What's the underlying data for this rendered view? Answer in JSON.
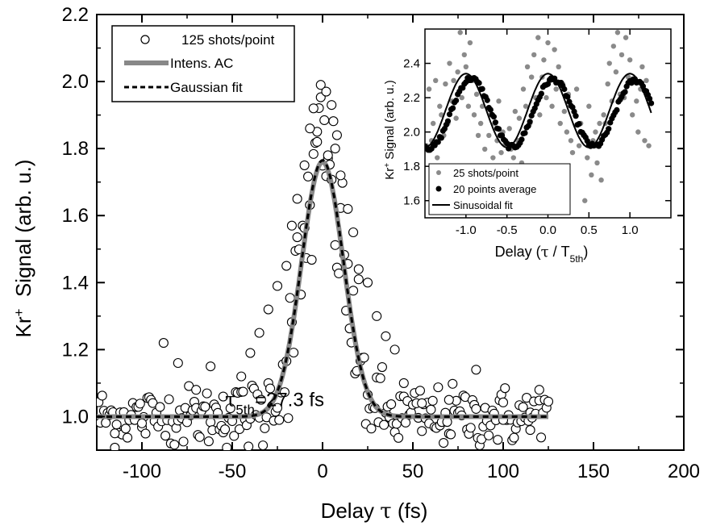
{
  "chart_data": [
    {
      "type": "scatter",
      "title": "",
      "xlabel": "Delay τ (fs)",
      "xlabel_parts": {
        "text": "Delay ",
        "sym": "τ",
        "unit": " (fs)"
      },
      "ylabel": "Kr+ Signal (arb. u.)",
      "ylabel_parts": {
        "base": "Kr",
        "sup": "+",
        "rest": "  Signal (arb. u.)"
      },
      "xlim": [
        -125,
        200
      ],
      "ylim": [
        0.9,
        2.2
      ],
      "xticks": [
        -100,
        -50,
        0,
        50,
        100,
        150,
        200
      ],
      "yticks": [
        1.0,
        1.2,
        1.4,
        1.6,
        1.8,
        2.0,
        2.2
      ],
      "ytick_labels": [
        "1.0",
        "1.2",
        "1.4",
        "1.6",
        "1.8",
        "2.0",
        "2.2"
      ],
      "grid": false,
      "legend_placement": "top-left",
      "legend": [
        "125 shots/point",
        "Intens. AC",
        "Gaussian fit"
      ],
      "annotation": {
        "sym": "τ",
        "sub": "5th",
        "text": "=27.3 fs"
      },
      "series": [
        {
          "name": "125 shots/point",
          "style": "open-circle",
          "color": "#000000",
          "model": "gaussian-with-noise",
          "x_range": [
            -125,
            125
          ],
          "x_step": 1,
          "note_points": [
            [
              -1,
              1.99
            ],
            [
              2,
              1.97
            ],
            [
              5,
              1.93
            ],
            [
              -5,
              1.92
            ],
            [
              8,
              1.84
            ],
            [
              -10,
              1.75
            ],
            [
              10,
              1.72
            ],
            [
              -88,
              1.22
            ],
            [
              -80,
              1.16
            ],
            [
              -62,
              1.15
            ],
            [
              85,
              1.14
            ],
            [
              -3,
              1.82
            ],
            [
              3,
              1.78
            ],
            [
              -14,
              1.65
            ],
            [
              14,
              1.62
            ],
            [
              -20,
              1.45
            ],
            [
              20,
              1.44
            ],
            [
              -30,
              1.32
            ],
            [
              30,
              1.3
            ],
            [
              -40,
              1.19
            ],
            [
              40,
              1.2
            ],
            [
              -25,
              1.39
            ],
            [
              25,
              1.4
            ],
            [
              -17,
              1.57
            ],
            [
              17,
              1.55
            ],
            [
              -7,
              1.86
            ],
            [
              7,
              1.8
            ],
            [
              -35,
              1.25
            ],
            [
              35,
              1.24
            ],
            [
              -45,
              1.12
            ],
            [
              45,
              1.1
            ],
            [
              -55,
              1.06
            ],
            [
              55,
              1.04
            ],
            [
              -70,
              1.08
            ],
            [
              70,
              1.05
            ],
            [
              -100,
              0.98
            ],
            [
              100,
              0.99
            ],
            [
              -115,
              0.95
            ],
            [
              115,
              0.96
            ],
            [
              120,
              1.08
            ]
          ]
        },
        {
          "name": "Intens. AC",
          "style": "thick-line",
          "color": "#888888",
          "model": "gaussian",
          "baseline": 1.0,
          "amplitude": 0.76,
          "center": 0,
          "fwhm": 27.3,
          "x_range": [
            -125,
            125
          ]
        },
        {
          "name": "Gaussian fit",
          "style": "dashed-line",
          "color": "#000000",
          "model": "gaussian",
          "baseline": 1.0,
          "amplitude": 0.765,
          "center": 0,
          "fwhm": 27.3,
          "x_range": [
            -125,
            125
          ]
        }
      ]
    },
    {
      "type": "scatter",
      "title": "",
      "xlabel": "Delay (τ / T5th)",
      "xlabel_parts": {
        "text": "Delay (",
        "sym": "τ",
        "mid": " / T",
        "sub": "5th",
        "end": ")"
      },
      "ylabel": "Kr+ Signal (arb. u.)",
      "ylabel_parts": {
        "base": "Kr",
        "sup": "+",
        "rest": " Signal (arb. u.)"
      },
      "xlim": [
        -1.5,
        1.5
      ],
      "ylim": [
        1.5,
        2.6
      ],
      "xticks": [
        -1.0,
        -0.5,
        0.0,
        0.5,
        1.0
      ],
      "xtick_labels": [
        "-1.0",
        "-0.5",
        "0.0",
        "0.5",
        "1.0"
      ],
      "yticks": [
        1.6,
        1.8,
        2.0,
        2.2,
        2.4
      ],
      "ytick_labels": [
        "1.6",
        "1.8",
        "2.0",
        "2.2",
        "2.4"
      ],
      "grid": false,
      "legend_placement": "bottom-left",
      "legend": [
        "25 shots/point",
        "20 points average",
        "Sinusoidal fit"
      ],
      "series": [
        {
          "name": "25 shots/point",
          "style": "filled-circle-small",
          "color": "#8a8a8a",
          "x": [
            -1.48,
            -1.45,
            -1.42,
            -1.4,
            -1.37,
            -1.35,
            -1.32,
            -1.3,
            -1.27,
            -1.25,
            -1.22,
            -1.2,
            -1.17,
            -1.15,
            -1.12,
            -1.1,
            -1.07,
            -1.05,
            -1.02,
            -1.0,
            -0.97,
            -0.95,
            -0.92,
            -0.9,
            -0.87,
            -0.85,
            -0.82,
            -0.8,
            -0.77,
            -0.75,
            -0.72,
            -0.7,
            -0.67,
            -0.65,
            -0.62,
            -0.6,
            -0.57,
            -0.55,
            -0.52,
            -0.5,
            -0.47,
            -0.45,
            -0.42,
            -0.4,
            -0.37,
            -0.35,
            -0.32,
            -0.3,
            -0.27,
            -0.25,
            -0.22,
            -0.2,
            -0.17,
            -0.15,
            -0.12,
            -0.1,
            -0.07,
            -0.05,
            -0.02,
            0.0,
            0.03,
            0.05,
            0.08,
            0.1,
            0.13,
            0.15,
            0.18,
            0.2,
            0.23,
            0.25,
            0.28,
            0.3,
            0.33,
            0.35,
            0.38,
            0.4,
            0.43,
            0.45,
            0.48,
            0.5,
            0.53,
            0.55,
            0.58,
            0.6,
            0.63,
            0.65,
            0.68,
            0.7,
            0.73,
            0.75,
            0.78,
            0.8,
            0.83,
            0.85,
            0.88,
            0.9,
            0.93,
            0.95,
            0.98,
            1.0,
            1.03,
            1.05,
            1.08,
            1.1,
            1.13,
            1.15,
            1.18,
            1.2,
            1.23
          ],
          "y": [
            1.92,
            2.25,
            1.95,
            2.05,
            2.3,
            1.85,
            2.15,
            2.1,
            1.98,
            2.28,
            2.05,
            2.4,
            2.18,
            2.3,
            2.08,
            2.35,
            2.58,
            2.2,
            2.45,
            2.38,
            2.15,
            2.52,
            2.3,
            2.1,
            2.22,
            1.98,
            2.05,
            2.15,
            1.9,
            2.2,
            1.98,
            2.1,
            1.85,
            2.05,
            1.95,
            2.18,
            1.88,
            2.0,
            1.93,
            1.78,
            2.02,
            1.9,
            1.85,
            2.12,
            1.95,
            2.08,
            1.82,
            2.25,
            2.15,
            2.38,
            2.05,
            2.32,
            2.45,
            2.2,
            2.55,
            2.1,
            2.32,
            2.42,
            2.2,
            2.52,
            2.3,
            2.15,
            2.48,
            2.25,
            2.38,
            2.05,
            2.28,
            2.12,
            2.0,
            2.22,
            1.95,
            1.88,
            2.1,
            2.25,
            1.92,
            2.05,
            1.98,
            1.6,
            1.85,
            2.15,
            1.75,
            1.95,
            2.0,
            1.82,
            2.05,
            1.72,
            2.1,
            2.05,
            2.28,
            2.4,
            2.18,
            2.5,
            2.35,
            2.58,
            2.22,
            2.45,
            2.2,
            2.55,
            2.32,
            2.42,
            2.1,
            2.3,
            2.18,
            2.0,
            2.25,
            2.38,
            1.95,
            2.3,
            1.92
          ]
        },
        {
          "name": "20 points average",
          "style": "filled-circle",
          "color": "#000000",
          "model": "smoothed-oscillation",
          "x_range": [
            -1.5,
            1.27
          ],
          "x_step": 0.02
        },
        {
          "name": "Sinusoidal fit",
          "style": "solid-line",
          "color": "#000000",
          "model": "sinusoid",
          "offset": 2.125,
          "amplitude": 0.215,
          "period": 1.0,
          "phase_center": 0.0,
          "x_range": [
            -1.5,
            1.27
          ]
        }
      ]
    }
  ]
}
